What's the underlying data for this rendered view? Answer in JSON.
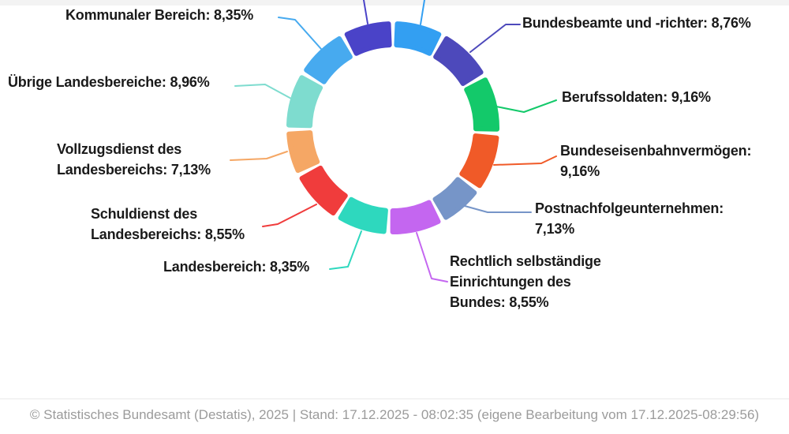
{
  "colors": {
    "background": "#FFFFFF",
    "top_band": "#F3F3F3",
    "label_text": "#1A1A1A",
    "footer_text": "#9B9B9B",
    "divider": "#E9E9E9"
  },
  "chart_data": {
    "type": "pie",
    "subtype": "donut",
    "unit": "%",
    "value_format": "comma-decimal",
    "legend_position": "callout-labels",
    "segments": [
      {
        "id": "unlabeled-top-right",
        "label": null,
        "display": null,
        "value_pct": null,
        "arc_pct_est": 7.95,
        "color": "#339FF2",
        "label_visible": false
      },
      {
        "id": "bundesbeamte-und-richter",
        "label": "Bundesbeamte und -richter",
        "value_pct": 8.76,
        "display": "Bundesbeamte und -richter: 8,76%",
        "arc_pct_est": 8.76,
        "color": "#4D49BB",
        "label_visible": true
      },
      {
        "id": "berufssoldaten",
        "label": "Berufssoldaten",
        "value_pct": 9.16,
        "display": "Berufssoldaten: 9,16%",
        "arc_pct_est": 9.16,
        "color": "#13C96A",
        "label_visible": true
      },
      {
        "id": "bundeseisenbahnvermoegen",
        "label": "Bundeseisenbahnvermögen",
        "value_pct": 9.16,
        "display": "Bundeseisenbahnvermögen:\n9,16%",
        "arc_pct_est": 9.16,
        "color": "#F05A28",
        "label_visible": true
      },
      {
        "id": "postnachfolgeunternehmen",
        "label": "Postnachfolgeunternehmen",
        "value_pct": 7.13,
        "display": "Postnachfolgeunternehmen:\n7,13%",
        "arc_pct_est": 7.13,
        "color": "#7695C8",
        "label_visible": true
      },
      {
        "id": "rechtlich-selbstaendige-einrichtungen-des-bundes",
        "label": "Rechtlich selbständige Einrichtungen des Bundes",
        "value_pct": 8.55,
        "display": "Rechtlich selbständige\nEinrichtungen des\nBundes: 8,55%",
        "arc_pct_est": 8.55,
        "color": "#C466F0",
        "label_visible": true
      },
      {
        "id": "landesbereich",
        "label": "Landesbereich",
        "value_pct": 8.35,
        "display": "Landesbereich: 8,35%",
        "arc_pct_est": 8.35,
        "color": "#2ED8BE",
        "label_visible": true
      },
      {
        "id": "schuldienst-des-landesbereichs",
        "label": "Schuldienst des Landesbereichs",
        "value_pct": 8.55,
        "display": "Schuldienst des\nLandesbereichs: 8,55%",
        "arc_pct_est": 8.55,
        "color": "#F03C3C",
        "label_visible": true
      },
      {
        "id": "vollzugsdienst-des-landesbereichs",
        "label": "Vollzugsdienst des Landesbereichs",
        "value_pct": 7.13,
        "display": "Vollzugsdienst des\nLandesbereichs: 7,13%",
        "arc_pct_est": 7.13,
        "color": "#F5A765",
        "label_visible": true
      },
      {
        "id": "uebrige-landesbereiche",
        "label": "Übrige Landesbereiche",
        "value_pct": 8.96,
        "display": "Übrige Landesbereiche: 8,96%",
        "arc_pct_est": 8.96,
        "color": "#7EDCCF",
        "label_visible": true
      },
      {
        "id": "kommunaler-bereich",
        "label": "Kommunaler Bereich",
        "value_pct": 8.35,
        "display": "Kommunaler Bereich: 8,35%",
        "arc_pct_est": 8.35,
        "color": "#47AAEF",
        "label_visible": true
      },
      {
        "id": "unlabeled-top-left",
        "label": null,
        "display": null,
        "value_pct": null,
        "arc_pct_est": 7.95,
        "color": "#4A43C8",
        "label_visible": false
      }
    ],
    "footer": "© Statistisches Bundesamt (Destatis), 2025 | Stand: 17.12.2025 - 08:02:35 (eigene Bearbeitung vom 17.12.2025-08:29:56)"
  }
}
